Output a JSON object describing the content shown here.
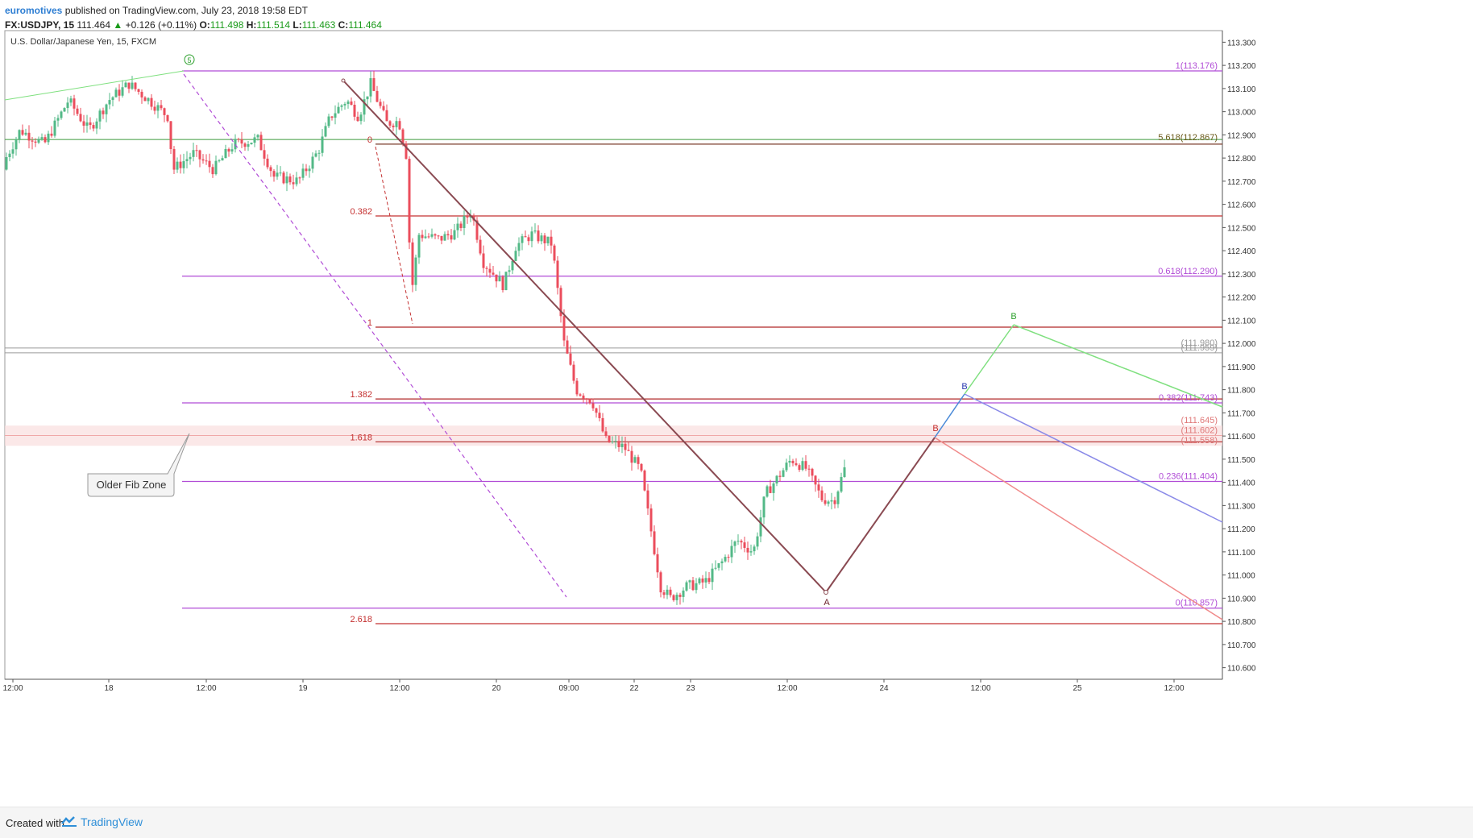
{
  "header": {
    "author": "euromotives",
    "published": "published on TradingView.com, July 23, 2018 19:58 EDT",
    "symbol": "FX:USDJPY, 15",
    "last": "111.464",
    "change": "+0.126 (+0.11%)",
    "open_label": "O:",
    "open": "111.498",
    "high_label": "H:",
    "high": "111.514",
    "low_label": "L:",
    "low": "111.463",
    "close_label": "C:",
    "close": "111.464"
  },
  "footer": {
    "created_with": "Created with",
    "brand": "TradingView"
  },
  "colors": {
    "up": "#53b987",
    "down": "#eb4d5c",
    "green": "#2ca02c"
  },
  "chart_data": {
    "type": "candlestick",
    "title": "U.S. Dollar/Japanese Yen, 15, FXCM",
    "ylim": [
      110.55,
      113.35
    ],
    "y_ticks": [
      "113.300",
      "113.200",
      "113.100",
      "113.000",
      "112.900",
      "112.800",
      "112.700",
      "112.600",
      "112.500",
      "112.400",
      "112.300",
      "112.200",
      "112.100",
      "112.000",
      "111.900",
      "111.800",
      "111.700",
      "111.600",
      "111.500",
      "111.400",
      "111.300",
      "111.200",
      "111.100",
      "111.000",
      "110.900",
      "110.800",
      "110.700",
      "110.600"
    ],
    "x_ticks": [
      "12:00",
      "18",
      "12:00",
      "19",
      "12:00",
      "20",
      "09:00",
      "22",
      "23",
      "12:00",
      "24",
      "12:00",
      "25",
      "12:00"
    ],
    "price_path": [
      [
        0,
        112.75
      ],
      [
        25,
        112.92
      ],
      [
        55,
        112.86
      ],
      [
        85,
        113.05
      ],
      [
        110,
        112.92
      ],
      [
        135,
        113.05
      ],
      [
        160,
        113.12
      ],
      [
        185,
        113.05
      ],
      [
        208,
        112.98
      ],
      [
        215,
        112.75
      ],
      [
        240,
        112.82
      ],
      [
        265,
        112.75
      ],
      [
        290,
        112.86
      ],
      [
        320,
        112.88
      ],
      [
        340,
        112.72
      ],
      [
        370,
        112.7
      ],
      [
        395,
        112.83
      ],
      [
        410,
        112.98
      ],
      [
        430,
        113.05
      ],
      [
        445,
        112.98
      ],
      [
        460,
        113.12
      ],
      [
        480,
        112.95
      ],
      [
        495,
        112.96
      ],
      [
        505,
        112.8
      ],
      [
        510,
        112.2
      ],
      [
        520,
        112.47
      ],
      [
        545,
        112.45
      ],
      [
        565,
        112.48
      ],
      [
        585,
        112.57
      ],
      [
        600,
        112.35
      ],
      [
        625,
        112.25
      ],
      [
        640,
        112.42
      ],
      [
        660,
        112.47
      ],
      [
        685,
        112.43
      ],
      [
        700,
        112.0
      ],
      [
        715,
        111.8
      ],
      [
        735,
        111.75
      ],
      [
        752,
        111.58
      ],
      [
        775,
        111.55
      ],
      [
        795,
        111.45
      ],
      [
        810,
        111.15
      ],
      [
        820,
        110.95
      ],
      [
        832,
        110.9
      ],
      [
        852,
        110.95
      ],
      [
        875,
        110.97
      ],
      [
        895,
        111.05
      ],
      [
        915,
        111.15
      ],
      [
        935,
        111.1
      ],
      [
        950,
        111.35
      ],
      [
        965,
        111.42
      ],
      [
        982,
        111.5
      ],
      [
        1000,
        111.46
      ],
      [
        1020,
        111.33
      ],
      [
        1035,
        111.32
      ],
      [
        1052,
        111.5
      ]
    ],
    "fib_levels": [
      {
        "label": "0",
        "value": 112.86
      },
      {
        "label": "0.382",
        "value": 112.55
      },
      {
        "label": "1",
        "value": 112.07
      },
      {
        "label": "1.382",
        "value": 111.76
      },
      {
        "label": "1.618",
        "value": 111.575
      },
      {
        "label": "2.618",
        "value": 110.79
      }
    ],
    "right_levels": [
      {
        "label": "1(113.176)",
        "value": 113.176
      },
      {
        "label": "5.618(112.867)",
        "value": 112.867
      },
      {
        "label": "0.618(112.290)",
        "value": 112.29
      },
      {
        "label": "(111.980)",
        "value": 111.98
      },
      {
        "label": "(111.959)",
        "value": 111.959
      },
      {
        "label": "0.382(111.743)",
        "value": 111.743
      },
      {
        "label": "(111.645)",
        "value": 111.645
      },
      {
        "label": "(111.602)",
        "value": 111.602
      },
      {
        "label": "(111.558)",
        "value": 111.558
      },
      {
        "label": "0.236(111.404)",
        "value": 111.404
      },
      {
        "label": "0(110.857)",
        "value": 110.857
      }
    ],
    "annotations": {
      "wave5": "5",
      "wave_a": "A",
      "wave_b_red": "B",
      "wave_b_blue": "B",
      "wave_b_green": "B",
      "older_fib_zone": "Older Fib Zone"
    }
  }
}
